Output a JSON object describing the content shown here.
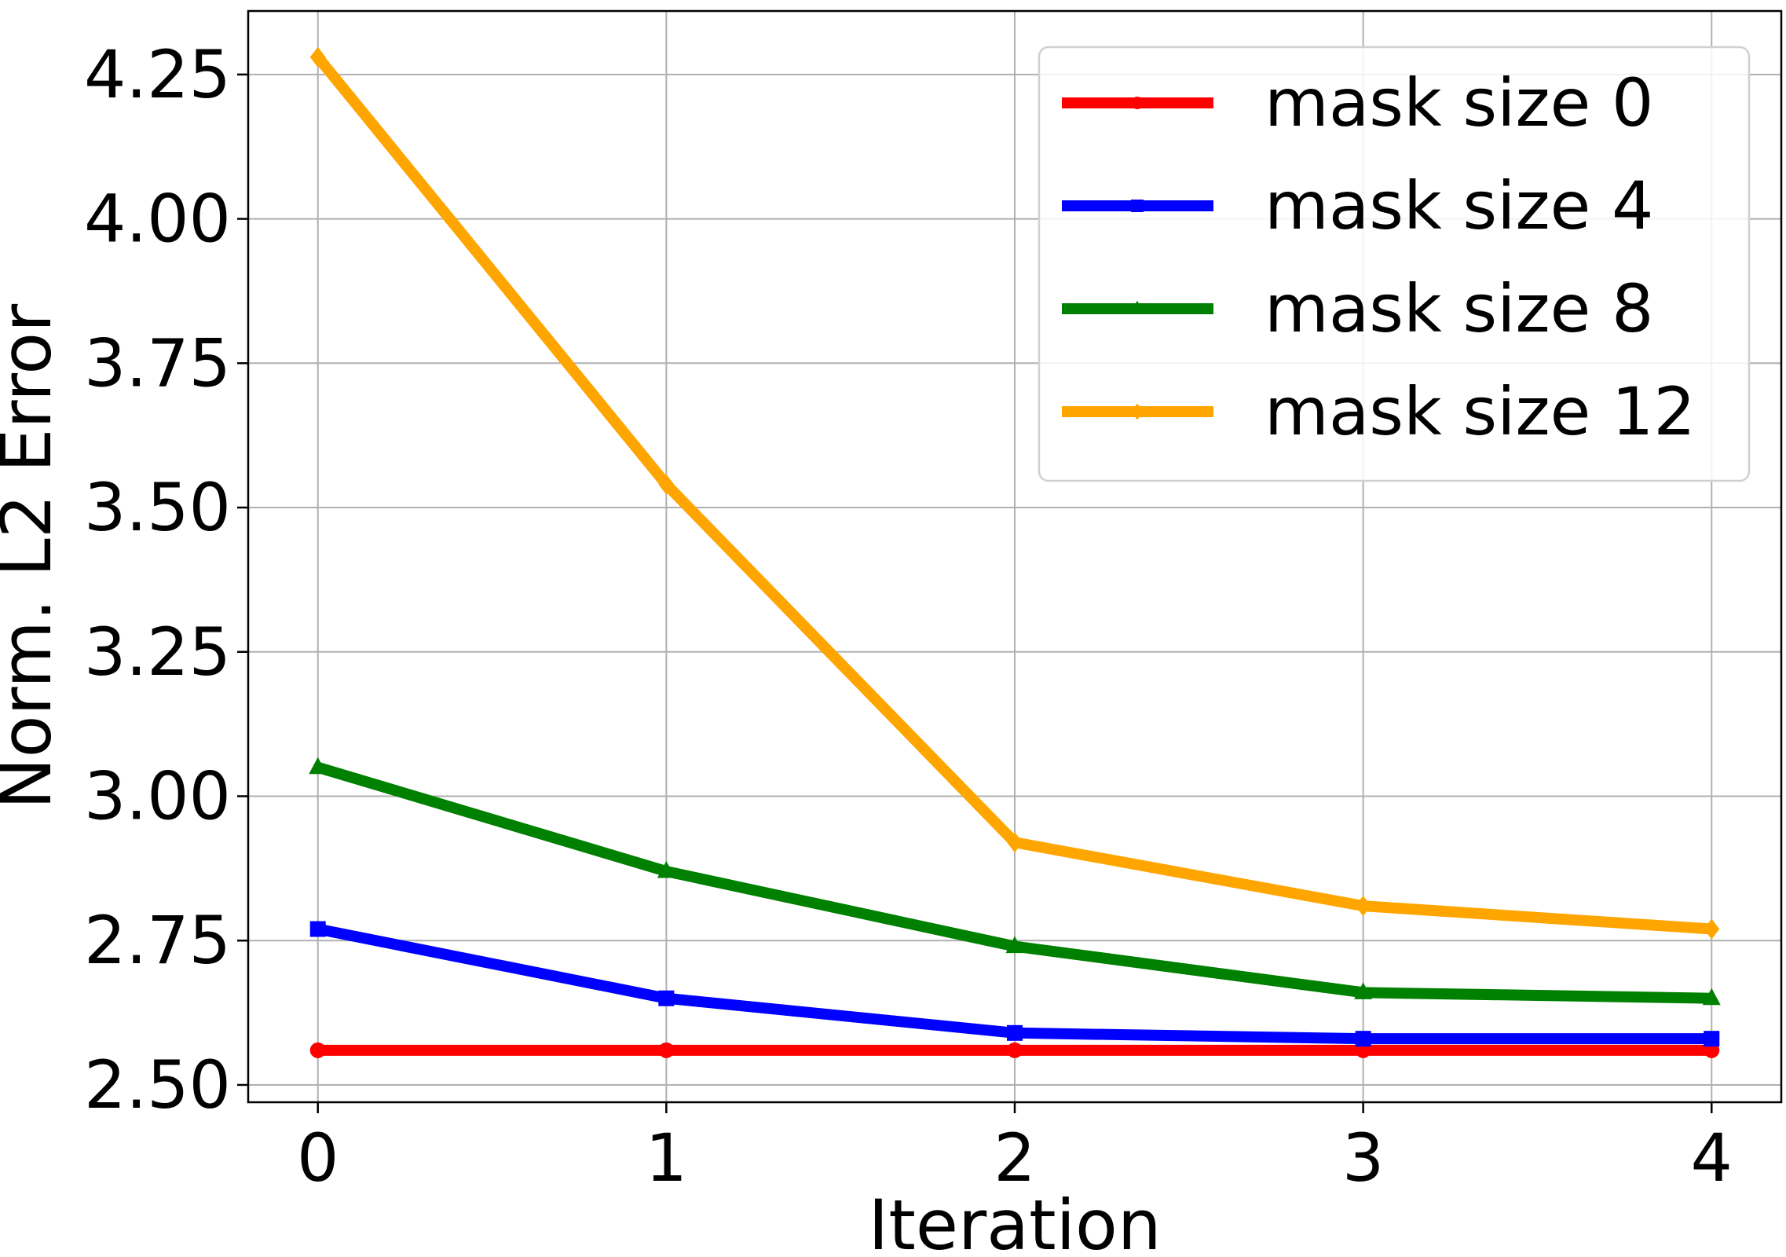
{
  "chart_data": {
    "type": "line",
    "title": "",
    "xlabel": "Iteration",
    "ylabel": "Norm. L2 Error",
    "x": [
      0,
      1,
      2,
      3,
      4
    ],
    "xticks": [
      "0",
      "1",
      "2",
      "3",
      "4"
    ],
    "yticks": [
      "2.50",
      "2.75",
      "3.00",
      "3.25",
      "3.50",
      "3.75",
      "4.00",
      "4.25"
    ],
    "xlim": [
      -0.2,
      4.2
    ],
    "ylim": [
      2.47,
      4.36
    ],
    "grid": true,
    "legend_position": "top-right",
    "series": [
      {
        "name": "mask size 0",
        "color": "#ff0000",
        "marker": "circle",
        "values": [
          2.56,
          2.56,
          2.56,
          2.56,
          2.56
        ]
      },
      {
        "name": "mask size 4",
        "color": "#0000ff",
        "marker": "square",
        "values": [
          2.77,
          2.65,
          2.59,
          2.58,
          2.58
        ]
      },
      {
        "name": "mask size 8",
        "color": "#008000",
        "marker": "triangle",
        "values": [
          3.05,
          2.87,
          2.74,
          2.66,
          2.65
        ]
      },
      {
        "name": "mask size 12",
        "color": "#ffa500",
        "marker": "diamond",
        "values": [
          4.28,
          3.54,
          2.92,
          2.81,
          2.77
        ]
      }
    ]
  }
}
